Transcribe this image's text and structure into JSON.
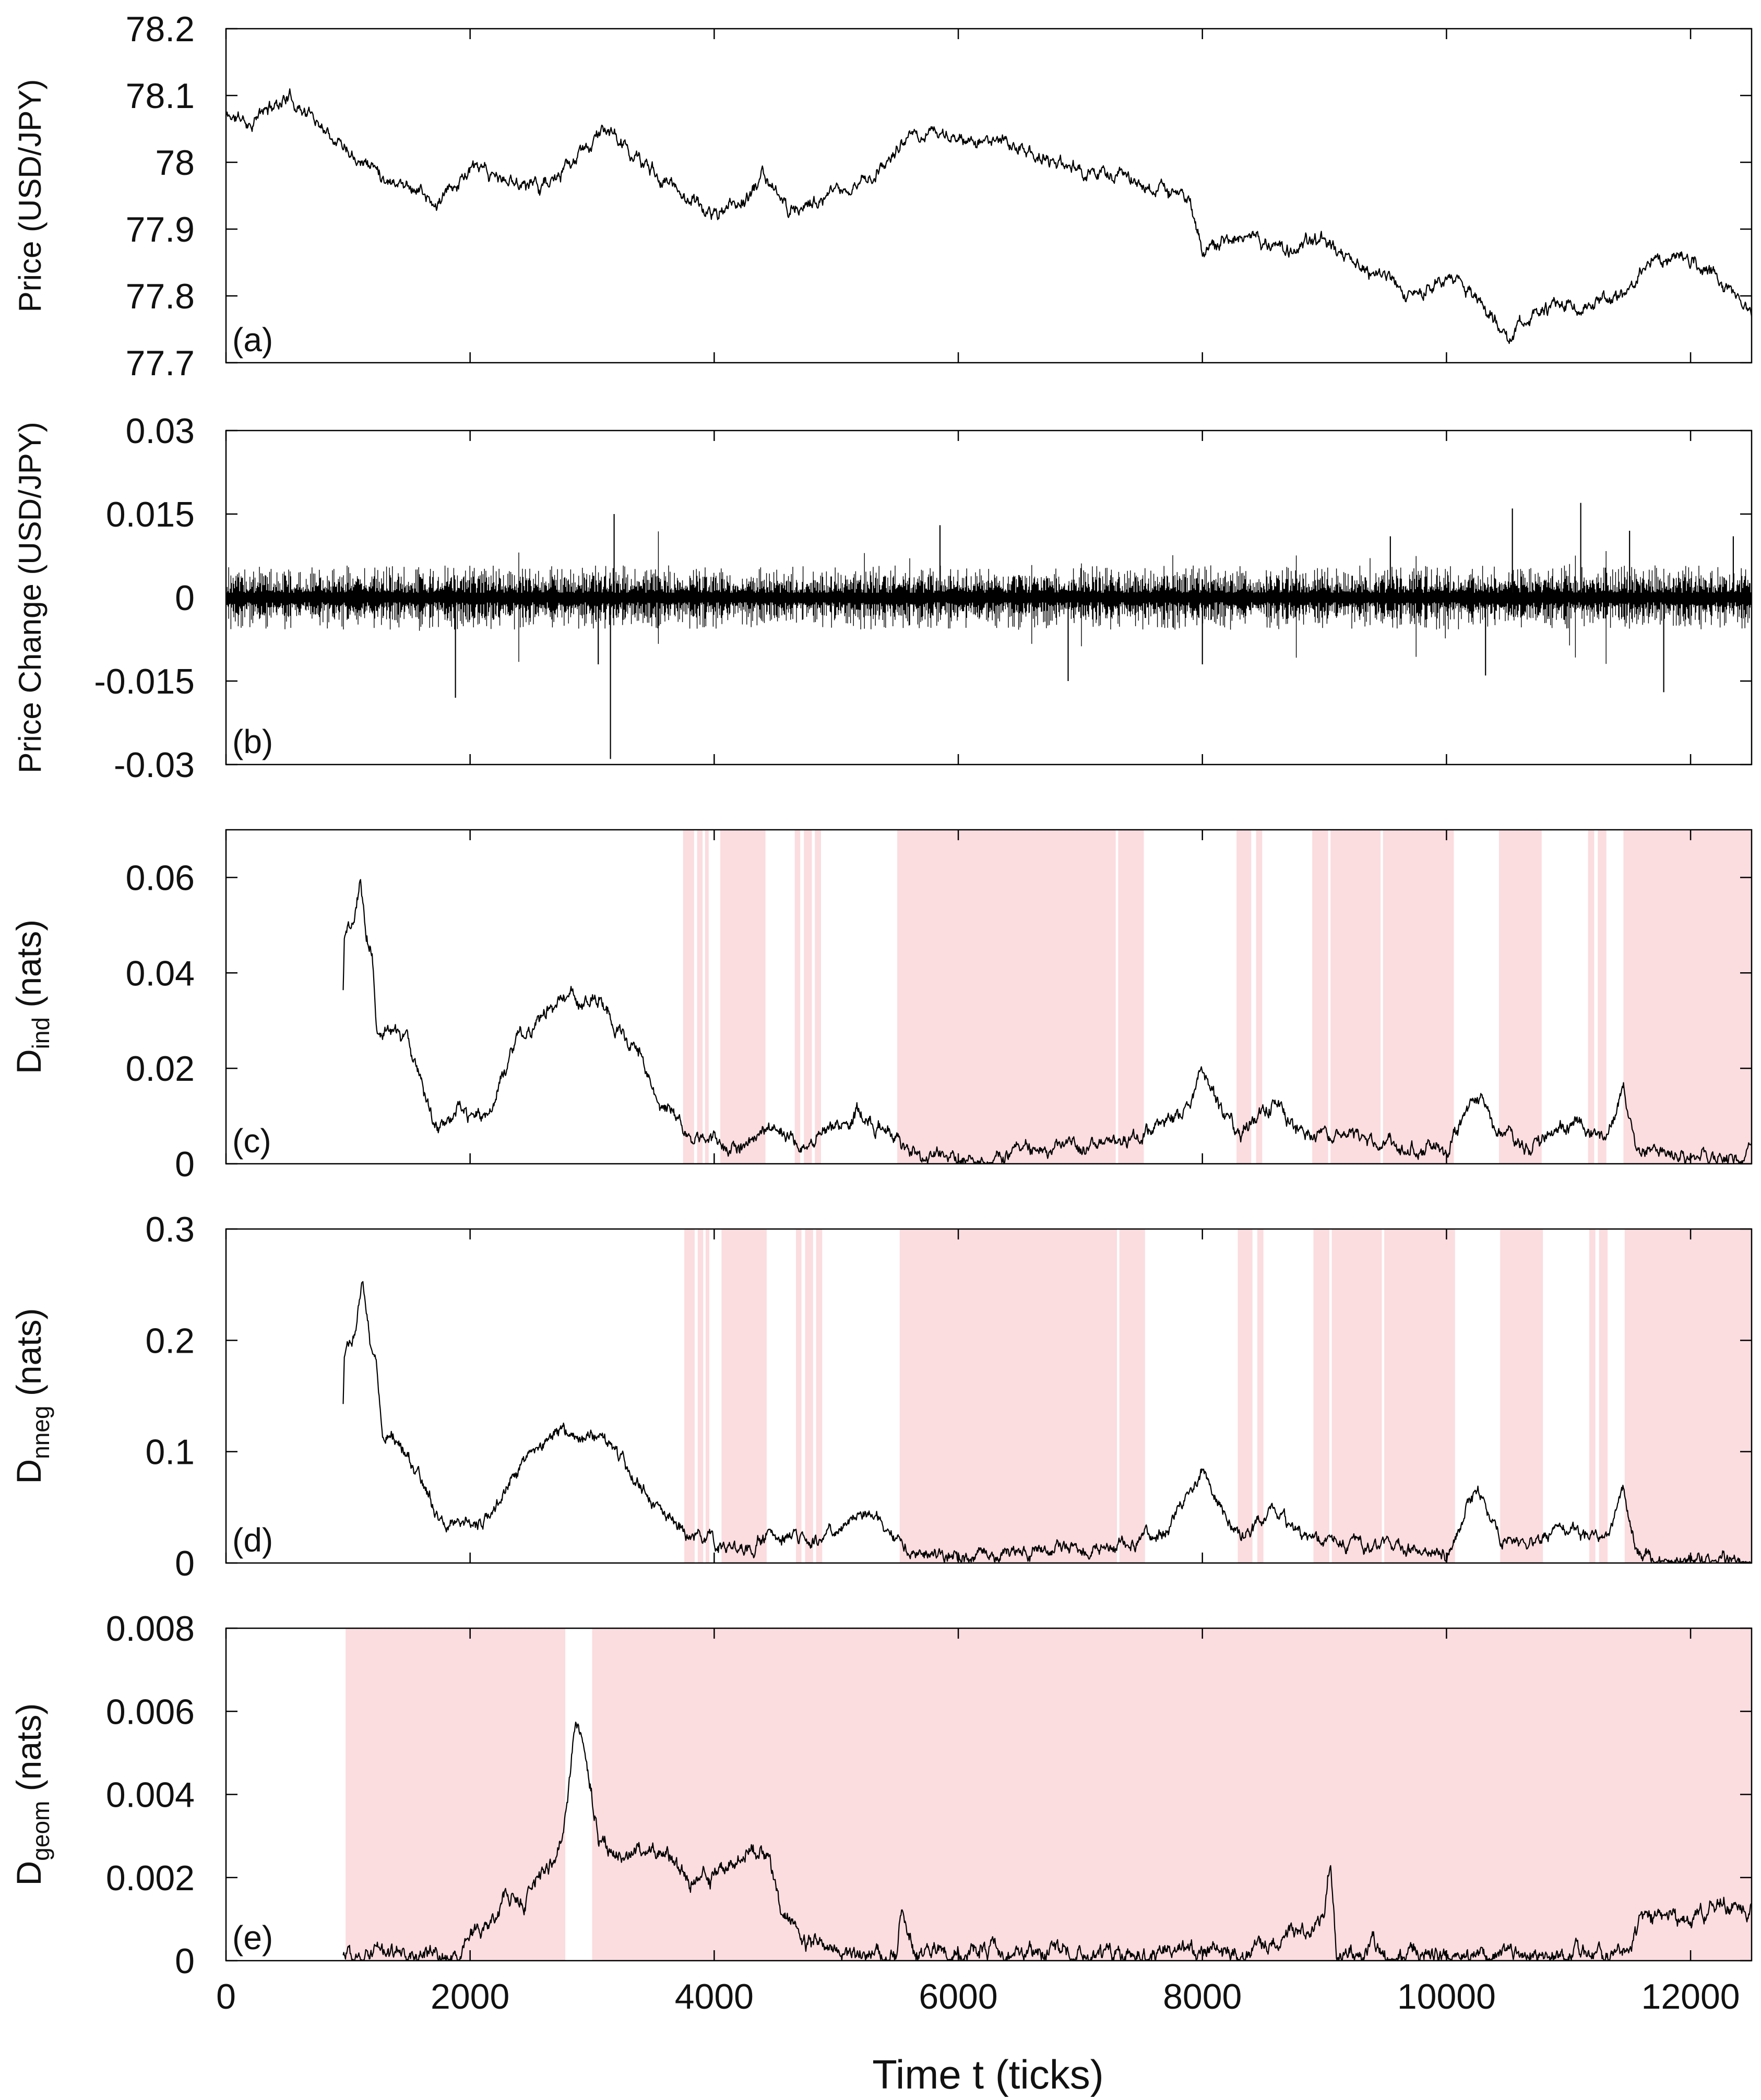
{
  "figure": {
    "xlabel": "Time t (ticks)",
    "x_ticks": [
      0,
      2000,
      4000,
      6000,
      8000,
      10000,
      12000
    ],
    "x_tick_labels": [
      "0",
      "2000",
      "4000",
      "6000",
      "8000",
      "10000",
      "12000"
    ],
    "xlim": [
      0,
      12500
    ],
    "colors": {
      "line": "#000000",
      "shade": "#fbdcdf",
      "axes": "#000000"
    }
  },
  "chart_data": [
    {
      "id": "a",
      "type": "line",
      "panel_label": "(a)",
      "ylabel": "Price (USD/JPY)",
      "ylim": [
        77.7,
        78.2
      ],
      "y_ticks": [
        77.7,
        77.8,
        77.9,
        78,
        78.1,
        78.2
      ],
      "y_tick_labels": [
        "77.7",
        "77.8",
        "77.9",
        "78",
        "78.1",
        "78.2"
      ],
      "keypoints": [
        [
          0,
          78.07
        ],
        [
          200,
          78.06
        ],
        [
          500,
          78.1
        ],
        [
          900,
          78.04
        ],
        [
          1300,
          77.98
        ],
        [
          1600,
          77.96
        ],
        [
          1700,
          77.93
        ],
        [
          2000,
          77.99
        ],
        [
          2300,
          77.97
        ],
        [
          2700,
          77.97
        ],
        [
          3100,
          78.05
        ],
        [
          3400,
          78.0
        ],
        [
          3700,
          77.96
        ],
        [
          4000,
          77.92
        ],
        [
          4300,
          77.95
        ],
        [
          4400,
          77.98
        ],
        [
          4600,
          77.93
        ],
        [
          5000,
          77.95
        ],
        [
          5300,
          77.98
        ],
        [
          5500,
          78.02
        ],
        [
          5800,
          78.05
        ],
        [
          6000,
          78.03
        ],
        [
          6400,
          78.03
        ],
        [
          6800,
          78.0
        ],
        [
          7200,
          77.98
        ],
        [
          7600,
          77.96
        ],
        [
          7900,
          77.95
        ],
        [
          8000,
          77.87
        ],
        [
          8300,
          77.89
        ],
        [
          8700,
          77.87
        ],
        [
          9000,
          77.88
        ],
        [
          9300,
          77.84
        ],
        [
          9700,
          77.81
        ],
        [
          10100,
          77.82
        ],
        [
          10400,
          77.77
        ],
        [
          10500,
          77.73
        ],
        [
          10700,
          77.77
        ],
        [
          11000,
          77.79
        ],
        [
          11400,
          77.79
        ],
        [
          11600,
          77.84
        ],
        [
          11900,
          77.86
        ],
        [
          12200,
          77.83
        ],
        [
          12500,
          77.78
        ]
      ],
      "noise": 0.006,
      "seed": 11,
      "shaded": []
    },
    {
      "id": "b",
      "type": "line",
      "panel_label": "(b)",
      "ylabel": "Price Change (USD/JPY)",
      "ylim": [
        -0.03,
        0.03
      ],
      "y_ticks": [
        -0.03,
        -0.015,
        0,
        0.015,
        0.03
      ],
      "y_tick_labels": [
        "-0.03",
        "-0.015",
        "0",
        "0.015",
        "0.03"
      ],
      "amplitude": 0.0035,
      "spikes": [
        [
          1880,
          -0.018
        ],
        [
          3150,
          -0.029
        ],
        [
          3180,
          0.015
        ],
        [
          3050,
          -0.012
        ],
        [
          5850,
          0.013
        ],
        [
          6900,
          -0.015
        ],
        [
          8000,
          -0.012
        ],
        [
          10320,
          -0.014
        ],
        [
          10540,
          0.016
        ],
        [
          11100,
          0.017
        ],
        [
          11780,
          -0.017
        ],
        [
          11500,
          0.012
        ],
        [
          12350,
          0.011
        ],
        [
          9540,
          0.011
        ]
      ],
      "seed": 23,
      "shaded": []
    },
    {
      "id": "c",
      "type": "line",
      "panel_label": "(c)",
      "ylabel": "D",
      "ylabel_sub": "ind",
      "ylabel_unit": " (nats)",
      "ylim": [
        0,
        0.07
      ],
      "y_ticks": [
        0,
        0.02,
        0.04,
        0.06
      ],
      "y_tick_labels": [
        "0",
        "0.02",
        "0.04",
        "0.06"
      ],
      "keypoints": [
        [
          960,
          0.036
        ],
        [
          970,
          0.049
        ],
        [
          1050,
          0.051
        ],
        [
          1100,
          0.06
        ],
        [
          1150,
          0.048
        ],
        [
          1200,
          0.045
        ],
        [
          1230,
          0.03
        ],
        [
          1400,
          0.027
        ],
        [
          1500,
          0.025
        ],
        [
          1550,
          0.022
        ],
        [
          1600,
          0.018
        ],
        [
          1700,
          0.009
        ],
        [
          1800,
          0.006
        ],
        [
          1900,
          0.011
        ],
        [
          2050,
          0.009
        ],
        [
          2200,
          0.011
        ],
        [
          2250,
          0.018
        ],
        [
          2400,
          0.027
        ],
        [
          2600,
          0.031
        ],
        [
          2800,
          0.037
        ],
        [
          2900,
          0.033
        ],
        [
          3050,
          0.035
        ],
        [
          3150,
          0.031
        ],
        [
          3300,
          0.025
        ],
        [
          3400,
          0.023
        ],
        [
          3500,
          0.014
        ],
        [
          3650,
          0.01
        ],
        [
          3800,
          0.006
        ],
        [
          3950,
          0.005
        ],
        [
          4000,
          0.005
        ],
        [
          4200,
          0.003
        ],
        [
          4400,
          0.007
        ],
        [
          4700,
          0.005
        ],
        [
          5000,
          0.008
        ],
        [
          5200,
          0.011
        ],
        [
          5400,
          0.008
        ],
        [
          5600,
          0.002
        ],
        [
          6000,
          0.001
        ],
        [
          6500,
          0.003
        ],
        [
          7000,
          0.003
        ],
        [
          7300,
          0.005
        ],
        [
          7600,
          0.007
        ],
        [
          7900,
          0.013
        ],
        [
          8000,
          0.019
        ],
        [
          8100,
          0.013
        ],
        [
          8300,
          0.006
        ],
        [
          8400,
          0.009
        ],
        [
          8600,
          0.013
        ],
        [
          8800,
          0.006
        ],
        [
          9000,
          0.006
        ],
        [
          9200,
          0.005
        ],
        [
          9600,
          0.004
        ],
        [
          10000,
          0.003
        ],
        [
          10200,
          0.012
        ],
        [
          10300,
          0.015
        ],
        [
          10400,
          0.006
        ],
        [
          10700,
          0.004
        ],
        [
          10900,
          0.008
        ],
        [
          11200,
          0.007
        ],
        [
          11300,
          0.004
        ],
        [
          11450,
          0.016
        ],
        [
          11550,
          0.004
        ],
        [
          11700,
          0.002
        ],
        [
          12000,
          0.001
        ],
        [
          12400,
          0.001
        ],
        [
          12500,
          0.002
        ]
      ],
      "noise": 0.0009,
      "seed": 37,
      "shaded": [
        [
          3745,
          3835
        ],
        [
          3860,
          3905
        ],
        [
          3925,
          3955
        ],
        [
          4050,
          4420
        ],
        [
          4660,
          4705
        ],
        [
          4735,
          4800
        ],
        [
          4825,
          4875
        ],
        [
          5500,
          7290
        ],
        [
          7310,
          7520
        ],
        [
          8280,
          8400
        ],
        [
          8440,
          8490
        ],
        [
          8900,
          9030
        ],
        [
          9050,
          9460
        ],
        [
          9480,
          10060
        ],
        [
          10430,
          10780
        ],
        [
          11160,
          11210
        ],
        [
          11240,
          11310
        ],
        [
          11450,
          12500
        ]
      ]
    },
    {
      "id": "d",
      "type": "line",
      "panel_label": "(d)",
      "ylabel": "D",
      "ylabel_sub": "nneg",
      "ylabel_unit": " (nats)",
      "ylim": [
        0,
        0.3
      ],
      "y_ticks": [
        0,
        0.1,
        0.2,
        0.3
      ],
      "y_tick_labels": [
        "0",
        "0.1",
        "0.2",
        "0.3"
      ],
      "keypoints": [
        [
          960,
          0.145
        ],
        [
          970,
          0.195
        ],
        [
          1050,
          0.205
        ],
        [
          1120,
          0.25
        ],
        [
          1180,
          0.2
        ],
        [
          1230,
          0.19
        ],
        [
          1280,
          0.12
        ],
        [
          1400,
          0.11
        ],
        [
          1550,
          0.085
        ],
        [
          1650,
          0.06
        ],
        [
          1800,
          0.025
        ],
        [
          1900,
          0.04
        ],
        [
          2100,
          0.035
        ],
        [
          2250,
          0.05
        ],
        [
          2300,
          0.07
        ],
        [
          2500,
          0.1
        ],
        [
          2700,
          0.12
        ],
        [
          2900,
          0.11
        ],
        [
          3050,
          0.115
        ],
        [
          3200,
          0.1
        ],
        [
          3400,
          0.07
        ],
        [
          3600,
          0.04
        ],
        [
          3800,
          0.025
        ],
        [
          4000,
          0.018
        ],
        [
          4300,
          0.012
        ],
        [
          4400,
          0.025
        ],
        [
          4800,
          0.022
        ],
        [
          5000,
          0.03
        ],
        [
          5200,
          0.045
        ],
        [
          5400,
          0.035
        ],
        [
          5600,
          0.01
        ],
        [
          6000,
          0.003
        ],
        [
          6500,
          0.01
        ],
        [
          7000,
          0.012
        ],
        [
          7400,
          0.018
        ],
        [
          7700,
          0.03
        ],
        [
          7900,
          0.06
        ],
        [
          8000,
          0.082
        ],
        [
          8150,
          0.045
        ],
        [
          8300,
          0.022
        ],
        [
          8600,
          0.045
        ],
        [
          8800,
          0.02
        ],
        [
          9000,
          0.02
        ],
        [
          9400,
          0.018
        ],
        [
          9700,
          0.012
        ],
        [
          10000,
          0.005
        ],
        [
          10200,
          0.055
        ],
        [
          10300,
          0.06
        ],
        [
          10450,
          0.02
        ],
        [
          10700,
          0.015
        ],
        [
          10900,
          0.03
        ],
        [
          11200,
          0.025
        ],
        [
          11300,
          0.02
        ],
        [
          11450,
          0.068
        ],
        [
          11550,
          0.015
        ],
        [
          11700,
          0.003
        ],
        [
          12000,
          0.003
        ],
        [
          12500,
          0.002
        ]
      ],
      "noise": 0.0035,
      "seed": 53,
      "shaded": [
        [
          3755,
          3840
        ],
        [
          3865,
          3910
        ],
        [
          3930,
          3960
        ],
        [
          4060,
          4430
        ],
        [
          4670,
          4715
        ],
        [
          4745,
          4810
        ],
        [
          4835,
          4885
        ],
        [
          5520,
          7300
        ],
        [
          7320,
          7530
        ],
        [
          8290,
          8410
        ],
        [
          8450,
          8500
        ],
        [
          8910,
          9040
        ],
        [
          9060,
          9470
        ],
        [
          9490,
          10070
        ],
        [
          10440,
          10790
        ],
        [
          11170,
          11220
        ],
        [
          11250,
          11320
        ],
        [
          11460,
          12500
        ]
      ]
    },
    {
      "id": "e",
      "type": "line",
      "panel_label": "(e)",
      "ylabel": "D",
      "ylabel_sub": "geom",
      "ylabel_unit": " (nats)",
      "ylim": [
        0,
        0.008
      ],
      "y_ticks": [
        0,
        0.002,
        0.004,
        0.006,
        0.008
      ],
      "y_tick_labels": [
        "0",
        "0.002",
        "0.004",
        "0.006",
        "0.008"
      ],
      "keypoints": [
        [
          960,
          0.0001
        ],
        [
          1200,
          0.0002
        ],
        [
          1500,
          0.0001
        ],
        [
          1900,
          0.0001
        ],
        [
          2000,
          0.0005
        ],
        [
          2200,
          0.001
        ],
        [
          2300,
          0.0017
        ],
        [
          2450,
          0.0012
        ],
        [
          2550,
          0.0021
        ],
        [
          2750,
          0.0027
        ],
        [
          2800,
          0.0042
        ],
        [
          2870,
          0.0056
        ],
        [
          2950,
          0.005
        ],
        [
          3050,
          0.003
        ],
        [
          3300,
          0.0026
        ],
        [
          3600,
          0.0027
        ],
        [
          3800,
          0.0019
        ],
        [
          4000,
          0.002
        ],
        [
          4200,
          0.0025
        ],
        [
          4450,
          0.0027
        ],
        [
          4550,
          0.0011
        ],
        [
          4750,
          0.0005
        ],
        [
          4900,
          0.0003
        ],
        [
          5200,
          0.0001
        ],
        [
          5500,
          0.0002
        ],
        [
          5530,
          0.0012
        ],
        [
          5650,
          0.0002
        ],
        [
          6000,
          0.0002
        ],
        [
          7000,
          0.0002
        ],
        [
          8000,
          0.0002
        ],
        [
          8500,
          0.0003
        ],
        [
          8800,
          0.0007
        ],
        [
          9000,
          0.0009
        ],
        [
          9050,
          0.0025
        ],
        [
          9100,
          0.0003
        ],
        [
          9350,
          0.0001
        ],
        [
          9400,
          0.0007
        ],
        [
          9500,
          0.0001
        ],
        [
          10000,
          0.0001
        ],
        [
          10800,
          0.0002
        ],
        [
          11500,
          0.0002
        ],
        [
          11600,
          0.001
        ],
        [
          12000,
          0.001
        ],
        [
          12200,
          0.0014
        ],
        [
          12500,
          0.0012
        ]
      ],
      "noise": 0.00012,
      "seed": 71,
      "shaded": [
        [
          980,
          2780
        ],
        [
          3000,
          12500
        ]
      ]
    }
  ]
}
